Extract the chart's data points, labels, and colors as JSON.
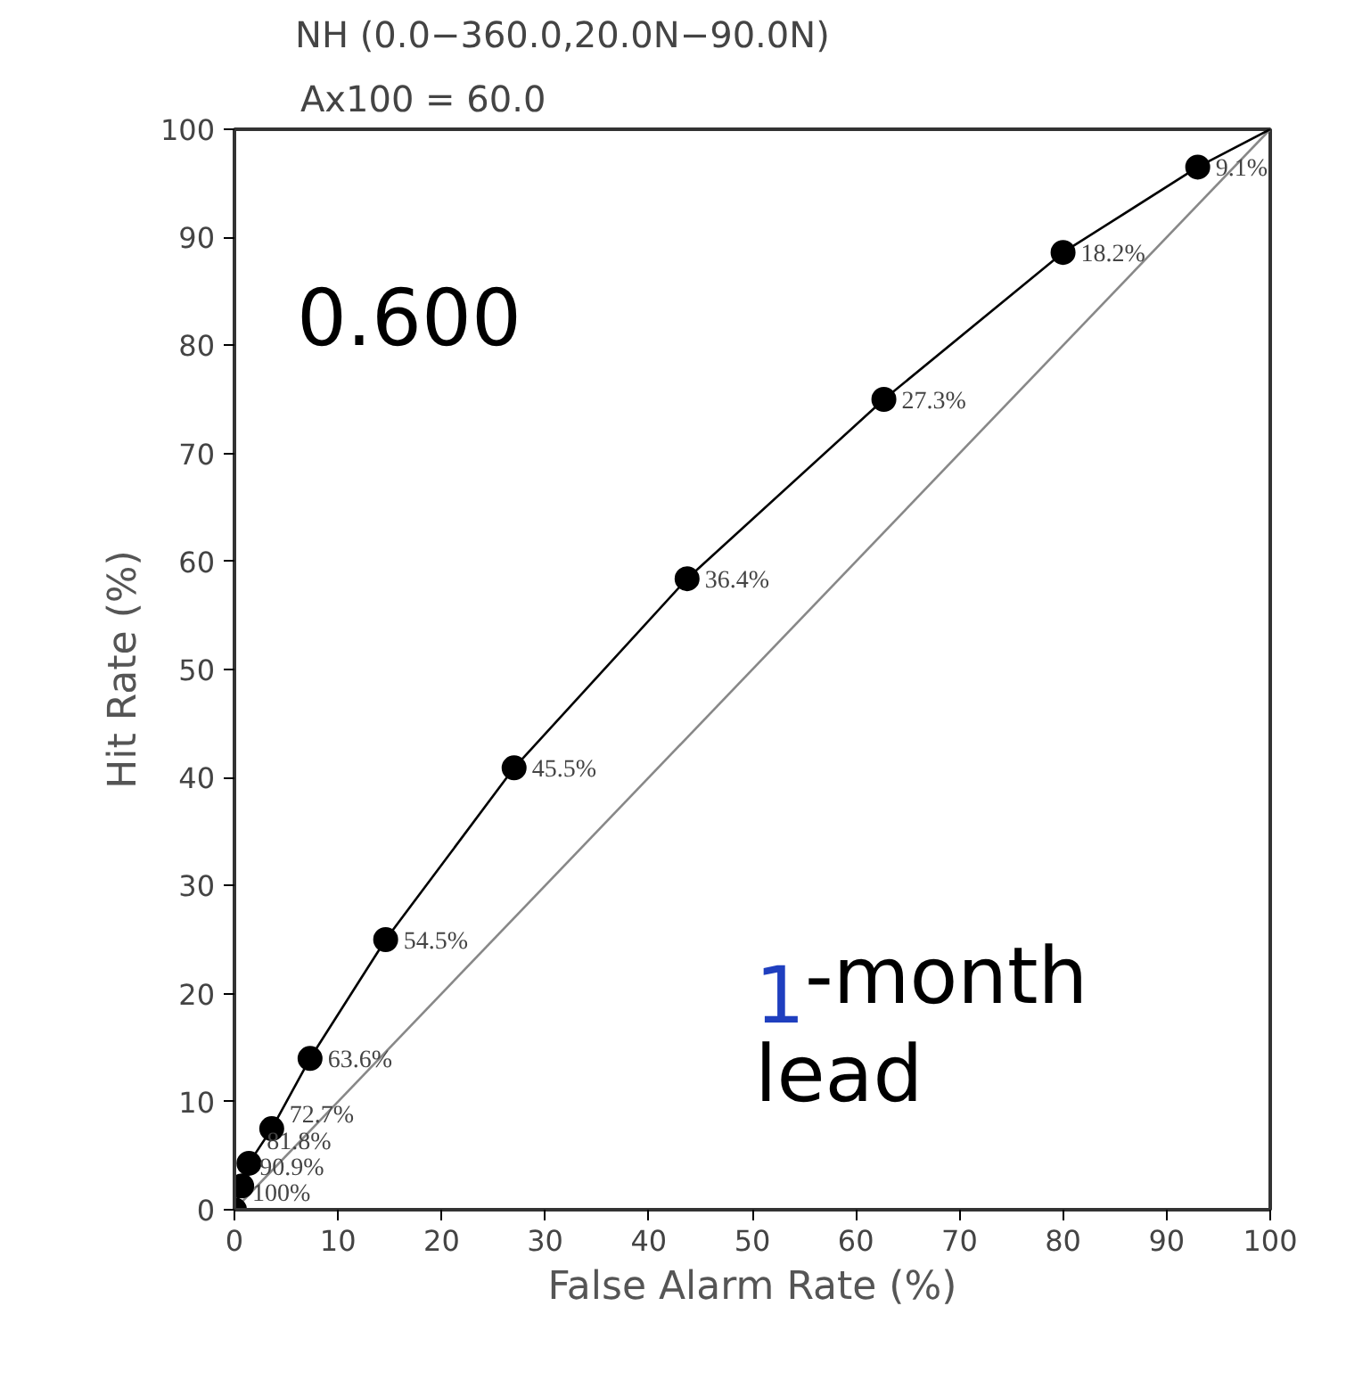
{
  "chart_data": {
    "type": "line",
    "title": "NH   (0.0−360.0,20.0N−90.0N)",
    "subtitle": "Ax100 = 60.0",
    "xlabel": "False Alarm Rate (%)",
    "ylabel": "Hit Rate (%)",
    "xlim": [
      0,
      100
    ],
    "ylim": [
      0,
      100
    ],
    "xticks": [
      0,
      10,
      20,
      30,
      40,
      50,
      60,
      70,
      80,
      90,
      100
    ],
    "yticks": [
      0,
      10,
      20,
      30,
      40,
      50,
      60,
      70,
      80,
      90,
      100
    ],
    "grid": false,
    "annotations": [
      "0.600",
      "1-month\nlead",
      {
        "text": "100%",
        "x": 0,
        "y": 0
      },
      {
        "text": "90.9%",
        "x": 0.7,
        "y": 2.2
      },
      {
        "text": "81.8%",
        "x": 1.4,
        "y": 4.3
      },
      {
        "text": "72.7%",
        "x": 3.6,
        "y": 7.5
      },
      {
        "text": "63.6%",
        "x": 7.3,
        "y": 14.0
      },
      {
        "text": "54.5%",
        "x": 14.6,
        "y": 25.0
      },
      {
        "text": "45.5%",
        "x": 27.0,
        "y": 40.9
      },
      {
        "text": "36.4%",
        "x": 43.7,
        "y": 58.4
      },
      {
        "text": "27.3%",
        "x": 62.7,
        "y": 75.0
      },
      {
        "text": "18.2%",
        "x": 80.0,
        "y": 88.6
      },
      {
        "text": "9.1%",
        "x": 93.0,
        "y": 96.5
      }
    ],
    "series": [
      {
        "color": "#888888",
        "x": [
          0,
          100
        ],
        "values": [
          0,
          100
        ],
        "marker": "none"
      },
      {
        "color": "#000000",
        "x": [
          0,
          0.7,
          1.4,
          3.6,
          7.3,
          14.6,
          27.0,
          43.7,
          62.7,
          80.0,
          93.0,
          100
        ],
        "values": [
          0,
          2.2,
          4.3,
          7.5,
          14.0,
          25.0,
          40.9,
          58.4,
          75.0,
          88.6,
          96.5,
          100
        ],
        "marker": "none"
      },
      {
        "type": "scatter",
        "color": "#000000",
        "marker": "circle",
        "x": [
          0,
          0.7,
          1.4,
          3.6,
          7.3,
          14.6,
          27.0,
          43.7,
          62.7,
          80.0,
          93.0
        ],
        "values": [
          0,
          2.2,
          4.3,
          7.5,
          14.0,
          25.0,
          40.9,
          58.4,
          75.0,
          88.6,
          96.5
        ]
      }
    ]
  }
}
